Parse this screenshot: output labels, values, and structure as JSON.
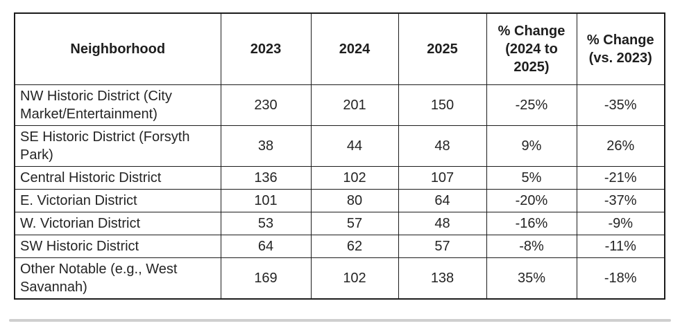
{
  "chart_data": {
    "type": "table",
    "title": "",
    "columns": [
      "Neighborhood",
      "2023",
      "2024",
      "2025",
      "% Change (2024 to 2025)",
      "% Change (vs. 2023)"
    ],
    "rows": [
      [
        "NW Historic District (City Market/Entertainment)",
        "230",
        "201",
        "150",
        "-25%",
        "-35%"
      ],
      [
        "SE Historic District (Forsyth Park)",
        "38",
        "44",
        "48",
        "9%",
        "26%"
      ],
      [
        "Central Historic District",
        "136",
        "102",
        "107",
        "5%",
        "-21%"
      ],
      [
        "E. Victorian District",
        "101",
        "80",
        "64",
        "-20%",
        "-37%"
      ],
      [
        "W. Victorian District",
        "53",
        "57",
        "48",
        "-16%",
        "-9%"
      ],
      [
        "SW Historic District",
        "64",
        "62",
        "57",
        "-8%",
        "-11%"
      ],
      [
        "Other Notable (e.g., West Savannah)",
        "169",
        "102",
        "138",
        "35%",
        "-18%"
      ]
    ],
    "colors": {
      "border": "#1b1b1b",
      "text": "#242424",
      "background": "#ffffff",
      "bottom_divider": "#cfcfcf"
    }
  }
}
